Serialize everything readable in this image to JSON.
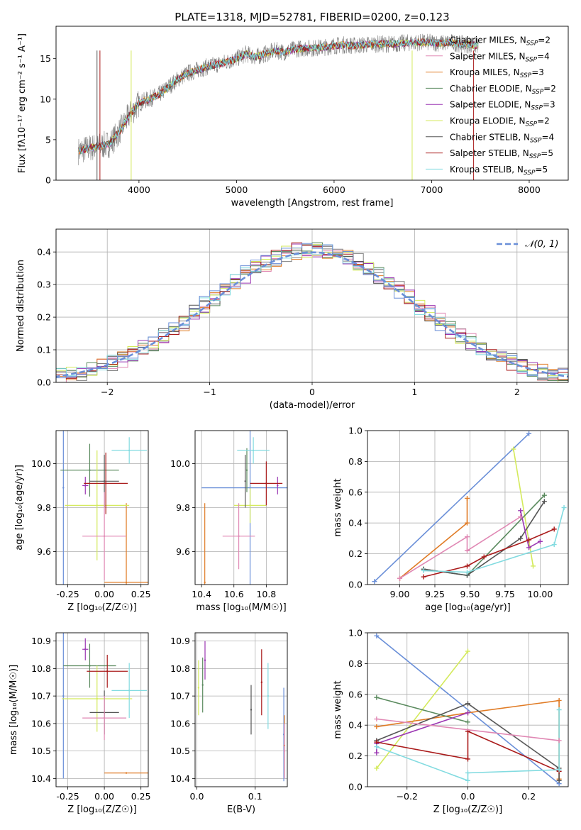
{
  "title": "PLATE=1318, MJD=52781, FIBERID=0200, z=0.123",
  "colors": {
    "blue": "#6a8fd8",
    "orange": "#e07b25",
    "green": "#5a8a5e",
    "purple": "#9b37b3",
    "yellowgreen": "#d4ea5c",
    "darkgray": "#555555",
    "darkred": "#aa1b1b",
    "cyan": "#82dbe0",
    "pink": "#e088b4",
    "gray": "#808080"
  },
  "chart_data": [
    {
      "type": "line",
      "id": "spectrum",
      "xlabel": "wavelength [Angstrom, rest frame]",
      "ylabel": "Flux [fλ10⁻¹⁷ erg cm⁻² s⁻¹ A⁻¹]",
      "xlim": [
        3150,
        8400
      ],
      "ylim": [
        0,
        19
      ],
      "xticks": [
        4000,
        5000,
        6000,
        7000,
        8000
      ],
      "yticks": [
        0,
        5,
        10,
        15
      ],
      "continuum": {
        "x": [
          3350,
          3500,
          3600,
          3700,
          3800,
          3900,
          4000,
          4100,
          4200,
          4300,
          4400,
          4500,
          4600,
          4700,
          4800,
          4900,
          5000,
          5100,
          5200,
          5300,
          5400,
          5500,
          5600,
          5700,
          5800,
          5900,
          6000,
          6100,
          6200,
          6300,
          6400,
          6500,
          6600,
          6700,
          6800,
          6900,
          7000,
          7100,
          7200,
          7300,
          7400,
          7500
        ],
        "y": [
          3.5,
          4.0,
          4.2,
          4.5,
          6.0,
          8.0,
          9.5,
          10.0,
          10.5,
          11.5,
          12.5,
          13.2,
          13.6,
          14.0,
          14.3,
          14.6,
          15.0,
          15.6,
          15.2,
          15.6,
          16.0,
          15.8,
          16.2,
          16.3,
          16.3,
          16.4,
          16.6,
          16.7,
          16.6,
          16.7,
          16.8,
          16.8,
          16.8,
          16.9,
          17.0,
          17.0,
          17.0,
          16.9,
          17.0,
          16.8,
          16.7,
          16.6
        ]
      },
      "legend": [
        {
          "label": "Chabrier MILES, N",
          "sub": "SSP",
          "tail": "=2",
          "color": "#808080"
        },
        {
          "label": "Salpeter MILES, N",
          "sub": "SSP",
          "tail": "=4",
          "color": "#e088b4"
        },
        {
          "label": "Kroupa MILES, N",
          "sub": "SSP",
          "tail": "=3",
          "color": "#e07b25"
        },
        {
          "label": "Chabrier ELODIE, N",
          "sub": "SSP",
          "tail": "=2",
          "color": "#5a8a5e"
        },
        {
          "label": "Salpeter ELODIE, N",
          "sub": "SSP",
          "tail": "=3",
          "color": "#9b37b3"
        },
        {
          "label": "Kroupa ELODIE, N",
          "sub": "SSP",
          "tail": "=2",
          "color": "#d4ea5c"
        },
        {
          "label": "Chabrier STELIB, N",
          "sub": "SSP",
          "tail": "=4",
          "color": "#555555"
        },
        {
          "label": "Salpeter STELIB, N",
          "sub": "SSP",
          "tail": "=5",
          "color": "#aa1b1b"
        },
        {
          "label": "Kroupa STELIB, N",
          "sub": "SSP",
          "tail": "=5",
          "color": "#82dbe0"
        }
      ]
    },
    {
      "type": "histogram",
      "id": "residuals",
      "xlabel": "(data-model)/error",
      "ylabel": "Normed distribution",
      "xlim": [
        -2.5,
        2.5
      ],
      "ylim": [
        0,
        0.47
      ],
      "xticks": [
        -2,
        -1,
        0,
        1,
        2
      ],
      "yticks": [
        0.0,
        0.1,
        0.2,
        0.3,
        0.4
      ],
      "bin_width": 0.1,
      "gaussian_label": "𝒩(0, 1)",
      "gaussian_color": "#6a8fd8"
    },
    {
      "type": "scatter",
      "id": "age-vs-z",
      "xlabel": "Z [log₁₀(Z/Z☉)]",
      "ylabel": "age  [log₁₀(age/yr)]",
      "xlim": [
        -0.33,
        0.3
      ],
      "ylim": [
        9.45,
        10.15
      ],
      "xticks": [
        -0.25,
        0.0,
        0.25
      ],
      "yticks": [
        9.6,
        9.8,
        10.0
      ],
      "points": [
        {
          "color": "#6a8fd8",
          "x": -0.28,
          "xerr": 0.0,
          "y": 9.89,
          "yerr": 0.45
        },
        {
          "color": "#e07b25",
          "x": 0.15,
          "xerr": 0.15,
          "y": 9.46,
          "yerr": 0.36
        },
        {
          "color": "#5a8a5e",
          "x": -0.1,
          "xerr": 0.2,
          "y": 9.97,
          "yerr": 0.12
        },
        {
          "color": "#9b37b3",
          "x": -0.13,
          "xerr": 0.02,
          "y": 9.9,
          "yerr": 0.04
        },
        {
          "color": "#d4ea5c",
          "x": -0.05,
          "xerr": 0.22,
          "y": 9.81,
          "yerr": 0.25
        },
        {
          "color": "#555555",
          "x": 0.0,
          "xerr": 0.1,
          "y": 9.92,
          "yerr": 0.12
        },
        {
          "color": "#aa1b1b",
          "x": 0.01,
          "xerr": 0.15,
          "y": 9.91,
          "yerr": 0.14
        },
        {
          "color": "#82dbe0",
          "x": 0.17,
          "xerr": 0.12,
          "y": 10.06,
          "yerr": 0.06
        },
        {
          "color": "#e088b4",
          "x": 0.0,
          "xerr": 0.15,
          "y": 9.67,
          "yerr": 0.2
        }
      ]
    },
    {
      "type": "scatter",
      "id": "age-vs-mass",
      "xlabel": "mass [log₁₀(M/M☉)]",
      "ylabel": "",
      "xlim": [
        10.36,
        10.93
      ],
      "ylim": [
        9.45,
        10.15
      ],
      "xticks": [
        10.4,
        10.6,
        10.8
      ],
      "yticks": [
        9.6,
        9.8,
        10.0
      ],
      "points": [
        {
          "color": "#6a8fd8",
          "x": 10.7,
          "xerr": 0.3,
          "y": 9.89,
          "yerr": 0.45
        },
        {
          "color": "#e07b25",
          "x": 10.42,
          "xerr": 0.0,
          "y": 9.46,
          "yerr": 0.36
        },
        {
          "color": "#5a8a5e",
          "x": 10.68,
          "xerr": 0.0,
          "y": 9.97,
          "yerr": 0.1
        },
        {
          "color": "#9b37b3",
          "x": 10.87,
          "xerr": 0.0,
          "y": 9.9,
          "yerr": 0.04
        },
        {
          "color": "#d4ea5c",
          "x": 10.7,
          "xerr": 0.1,
          "y": 9.81,
          "yerr": 0.08
        },
        {
          "color": "#555555",
          "x": 10.67,
          "xerr": 0.0,
          "y": 9.92,
          "yerr": 0.12
        },
        {
          "color": "#aa1b1b",
          "x": 10.8,
          "xerr": 0.1,
          "y": 9.91,
          "yerr": 0.1
        },
        {
          "color": "#82dbe0",
          "x": 10.72,
          "xerr": 0.1,
          "y": 10.06,
          "yerr": 0.06
        },
        {
          "color": "#e088b4",
          "x": 10.63,
          "xerr": 0.1,
          "y": 9.67,
          "yerr": 0.15
        }
      ]
    },
    {
      "type": "line",
      "id": "weight-vs-age",
      "xlabel": "age  [log₁₀(age/yr)]",
      "ylabel": "mass weight",
      "xlim": [
        8.77,
        10.2
      ],
      "ylim": [
        0,
        1
      ],
      "xticks": [
        9.0,
        9.25,
        9.5,
        9.75,
        10.0
      ],
      "yticks": [
        0.0,
        0.2,
        0.4,
        0.6,
        0.8,
        1.0
      ],
      "series": [
        {
          "color": "#6a8fd8",
          "x": [
            8.82,
            9.92
          ],
          "y": [
            0.02,
            0.98
          ]
        },
        {
          "color": "#d4ea5c",
          "x": [
            9.81,
            9.95
          ],
          "y": [
            0.88,
            0.12
          ]
        },
        {
          "color": "#e07b25",
          "x": [
            9.0,
            9.48,
            9.48
          ],
          "y": [
            0.04,
            0.4,
            0.56
          ]
        },
        {
          "color": "#5a8a5e",
          "x": [
            9.17,
            9.48,
            10.03
          ],
          "y": [
            0.1,
            0.06,
            0.58
          ]
        },
        {
          "color": "#555555",
          "x": [
            9.17,
            9.48,
            9.86,
            10.03
          ],
          "y": [
            0.1,
            0.06,
            0.3,
            0.54
          ]
        },
        {
          "color": "#9b37b3",
          "x": [
            9.86,
            9.92,
            10.0
          ],
          "y": [
            0.48,
            0.24,
            0.28
          ]
        },
        {
          "color": "#aa1b1b",
          "x": [
            9.17,
            9.48,
            9.6,
            9.92,
            10.1
          ],
          "y": [
            0.05,
            0.12,
            0.18,
            0.29,
            0.36
          ]
        },
        {
          "color": "#82dbe0",
          "x": [
            9.17,
            9.48,
            10.1,
            10.17
          ],
          "y": [
            0.09,
            0.08,
            0.26,
            0.5
          ]
        },
        {
          "color": "#e088b4",
          "x": [
            9.0,
            9.48,
            9.48,
            9.86
          ],
          "y": [
            0.04,
            0.31,
            0.22,
            0.44
          ]
        }
      ]
    },
    {
      "type": "scatter",
      "id": "mass-vs-z",
      "xlabel": "Z [log₁₀(Z/Z☉)]",
      "ylabel": "mass [log₁₀(M/M☉)]",
      "xlim": [
        -0.33,
        0.3
      ],
      "ylim": [
        10.37,
        10.93
      ],
      "xticks": [
        -0.25,
        0.0,
        0.25
      ],
      "yticks": [
        10.4,
        10.5,
        10.6,
        10.7,
        10.8,
        10.9
      ],
      "points": [
        {
          "color": "#6a8fd8",
          "x": -0.28,
          "xerr": 0.0,
          "y": 10.7,
          "yerr": 0.3
        },
        {
          "color": "#e07b25",
          "x": 0.15,
          "xerr": 0.15,
          "y": 10.42,
          "yerr": 0.0
        },
        {
          "color": "#5a8a5e",
          "x": -0.1,
          "xerr": 0.18,
          "y": 10.81,
          "yerr": 0.08
        },
        {
          "color": "#9b37b3",
          "x": -0.13,
          "xerr": 0.02,
          "y": 10.87,
          "yerr": 0.04
        },
        {
          "color": "#d4ea5c",
          "x": -0.05,
          "xerr": 0.24,
          "y": 10.69,
          "yerr": 0.12
        },
        {
          "color": "#555555",
          "x": 0.0,
          "xerr": 0.1,
          "y": 10.64,
          "yerr": 0.08
        },
        {
          "color": "#aa1b1b",
          "x": 0.02,
          "xerr": 0.14,
          "y": 10.79,
          "yerr": 0.06
        },
        {
          "color": "#82dbe0",
          "x": 0.17,
          "xerr": 0.12,
          "y": 10.72,
          "yerr": 0.1
        },
        {
          "color": "#e088b4",
          "x": 0.0,
          "xerr": 0.15,
          "y": 10.62,
          "yerr": 0.08
        }
      ]
    },
    {
      "type": "scatter",
      "id": "mass-vs-ebv",
      "xlabel": "E(B-V)",
      "ylabel": "",
      "xlim": [
        -0.003,
        0.155
      ],
      "ylim": [
        10.37,
        10.93
      ],
      "xticks": [
        0.0,
        0.1
      ],
      "yticks": [
        10.4,
        10.5,
        10.6,
        10.7,
        10.8,
        10.9
      ],
      "points": [
        {
          "color": "#6a8fd8",
          "x": 0.149,
          "xerr": 0,
          "y": 10.56,
          "yerr": 0.17
        },
        {
          "color": "#e07b25",
          "x": 0.15,
          "xerr": 0,
          "y": 10.52,
          "yerr": 0.11
        },
        {
          "color": "#5a8a5e",
          "x": 0.01,
          "xerr": 0,
          "y": 10.74,
          "yerr": 0.1
        },
        {
          "color": "#9b37b3",
          "x": 0.014,
          "xerr": 0,
          "y": 10.83,
          "yerr": 0.07
        },
        {
          "color": "#d4ea5c",
          "x": 0.003,
          "xerr": 0,
          "y": 10.73,
          "yerr": 0.1
        },
        {
          "color": "#555555",
          "x": 0.093,
          "xerr": 0,
          "y": 10.65,
          "yerr": 0.09
        },
        {
          "color": "#aa1b1b",
          "x": 0.111,
          "xerr": 0,
          "y": 10.75,
          "yerr": 0.12
        },
        {
          "color": "#82dbe0",
          "x": 0.122,
          "xerr": 0,
          "y": 10.7,
          "yerr": 0.12
        },
        {
          "color": "#e088b4",
          "x": 0.15,
          "xerr": 0,
          "y": 10.5,
          "yerr": 0.1
        }
      ]
    },
    {
      "type": "line",
      "id": "weight-vs-z",
      "xlabel": "Z [log₁₀(Z/Z☉)]",
      "ylabel": "mass weight",
      "xlim": [
        -0.33,
        0.33
      ],
      "ylim": [
        0,
        1
      ],
      "xticks": [
        -0.2,
        0.0,
        0.2
      ],
      "yticks": [
        0.0,
        0.2,
        0.4,
        0.6,
        0.8,
        1.0
      ],
      "series": [
        {
          "color": "#6a8fd8",
          "x": [
            -0.3,
            0.3
          ],
          "y": [
            0.98,
            0.02
          ]
        },
        {
          "color": "#d4ea5c",
          "x": [
            -0.3,
            0.0
          ],
          "y": [
            0.12,
            0.88
          ]
        },
        {
          "color": "#e07b25",
          "x": [
            -0.3,
            0.0,
            0.3,
            0.3
          ],
          "y": [
            0.39,
            0.48,
            0.56,
            0.05
          ]
        },
        {
          "color": "#5a8a5e",
          "x": [
            -0.3,
            0.0
          ],
          "y": [
            0.58,
            0.42
          ]
        },
        {
          "color": "#555555",
          "x": [
            -0.3,
            0.0,
            0.3,
            0.3
          ],
          "y": [
            0.3,
            0.54,
            0.12,
            0.04
          ]
        },
        {
          "color": "#9b37b3",
          "x": [
            -0.3,
            -0.3,
            0.0
          ],
          "y": [
            0.22,
            0.28,
            0.48
          ]
        },
        {
          "color": "#aa1b1b",
          "x": [
            -0.3,
            0.0,
            0.0,
            0.3
          ],
          "y": [
            0.29,
            0.18,
            0.36,
            0.1
          ]
        },
        {
          "color": "#82dbe0",
          "x": [
            -0.3,
            0.0,
            0.0,
            0.3,
            0.3
          ],
          "y": [
            0.26,
            0.04,
            0.09,
            0.11,
            0.5
          ]
        },
        {
          "color": "#e088b4",
          "x": [
            -0.3,
            0.3
          ],
          "y": [
            0.44,
            0.3
          ]
        }
      ]
    }
  ]
}
